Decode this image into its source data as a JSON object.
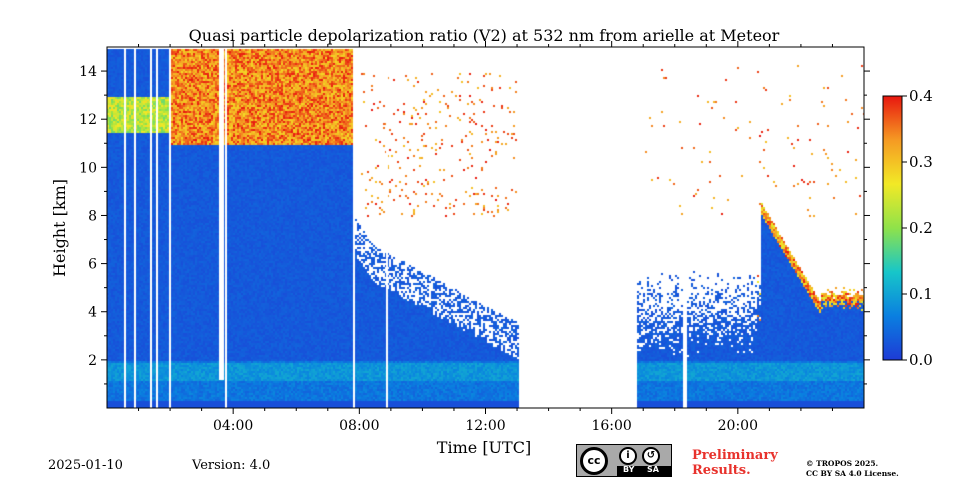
{
  "chart_data": {
    "type": "heatmap",
    "title": "Quasi particle depolarization ratio (V2) at 532 nm from arielle at Meteor",
    "xlabel": "Time [UTC]",
    "ylabel": "Height [km]",
    "xlim": [
      0,
      24
    ],
    "ylim": [
      0,
      15
    ],
    "x_ticks": [
      "04:00",
      "08:00",
      "12:00",
      "16:00",
      "20:00"
    ],
    "y_ticks": [
      "2",
      "4",
      "6",
      "8",
      "10",
      "12",
      "14"
    ],
    "colorbar": {
      "range": [
        0.0,
        0.4
      ],
      "ticks": [
        "0.0",
        "0.1",
        "0.2",
        "0.3",
        "0.4"
      ],
      "colors": [
        "#1e3bd6",
        "#0a7fe0",
        "#17c6c9",
        "#8fe24a",
        "#f2e926",
        "#f59a23",
        "#e8170f"
      ]
    },
    "layers": [
      {
        "name": "boundary layer",
        "x_range": [
          0,
          24
        ],
        "height_km": [
          0.3,
          2.0
        ],
        "value": 0.05
      },
      {
        "name": "lower troposphere",
        "x_range": [
          0,
          13
        ],
        "height_km": [
          2.0,
          8.0
        ],
        "value": 0.02
      },
      {
        "name": "high cirrus",
        "x_range": [
          2,
          8
        ],
        "height_km": [
          11,
          15
        ],
        "value": 0.35
      },
      {
        "name": "descending cloud",
        "x_range": [
          20.6,
          24
        ],
        "height_km": [
          4.3,
          8.7
        ],
        "value": 0.35
      }
    ],
    "data_gaps_hours": [
      [
        13.0,
        16.8
      ],
      [
        18.2,
        18.35
      ]
    ]
  },
  "footer": {
    "date": "2025-01-10",
    "version": "Version: 4.0",
    "license_badge": {
      "by": "BY",
      "sa": "SA"
    },
    "preliminary": [
      "Preliminary",
      "Results."
    ],
    "copyright": [
      "© TROPOS 2025.",
      "CC BY SA 4.0 License."
    ]
  }
}
